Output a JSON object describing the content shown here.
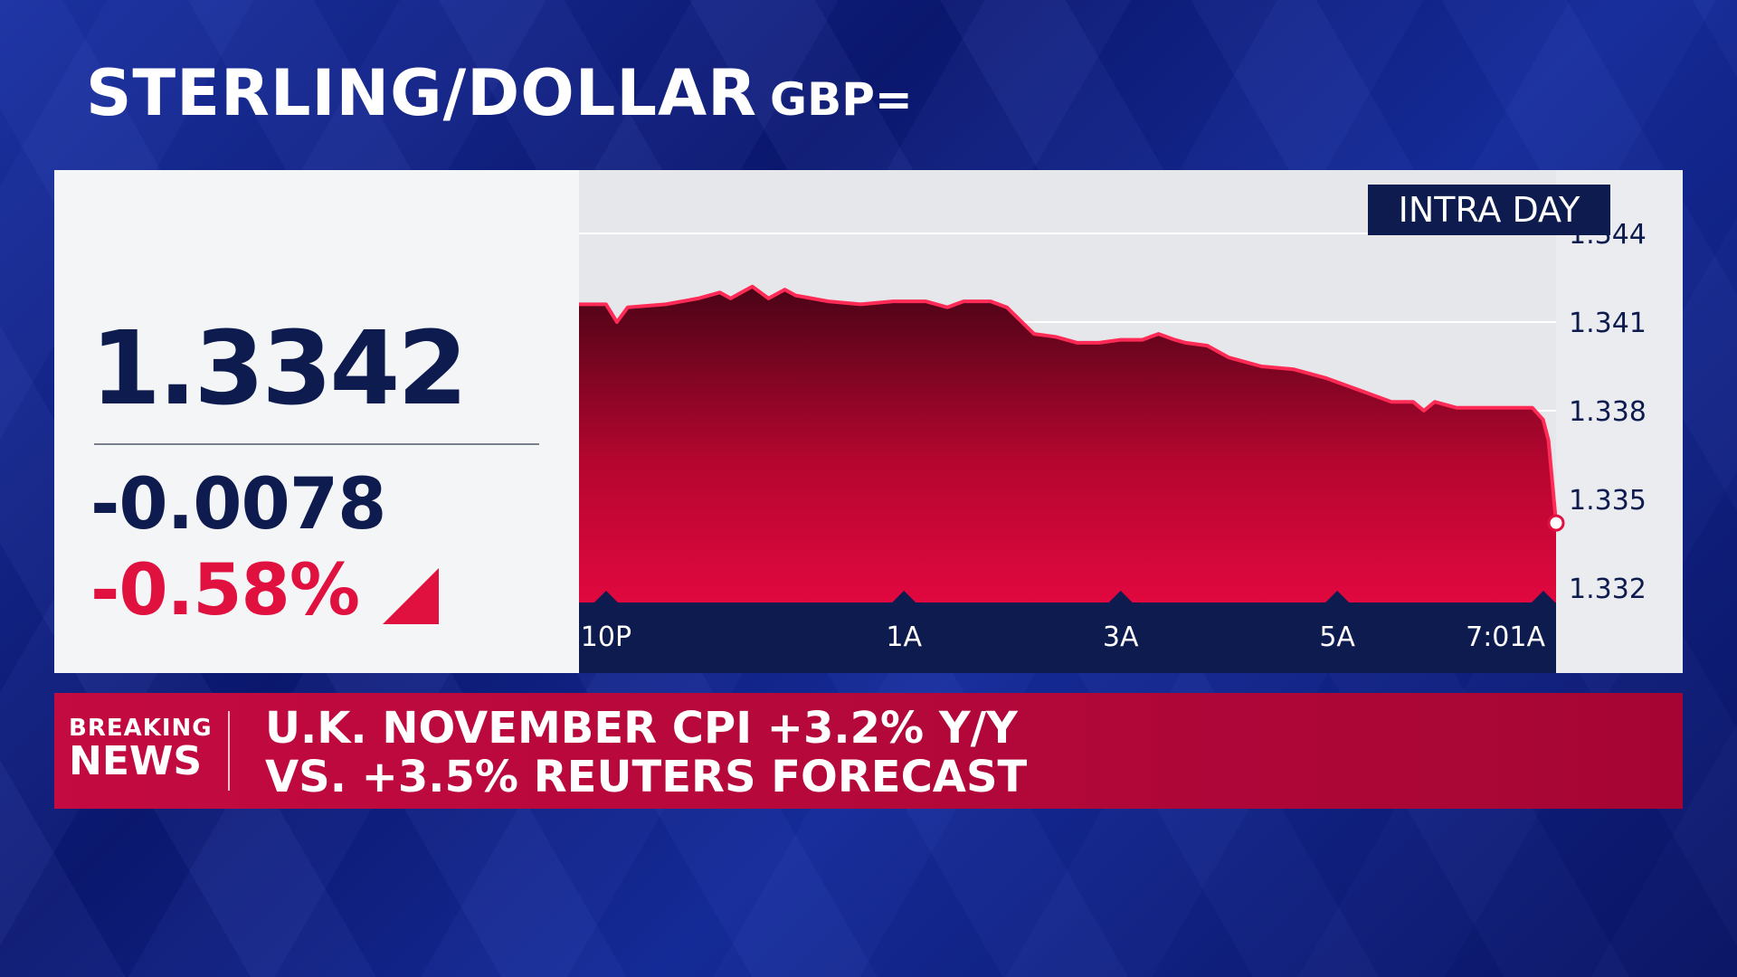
{
  "title": {
    "main": "STERLING/DOLLAR",
    "symbol": "GBP="
  },
  "quote": {
    "price": "1.3342",
    "change": "-0.0078",
    "change_pct": "-0.58%"
  },
  "badge": "INTRA DAY",
  "colors": {
    "navy": "#0d1b4f",
    "accent_red": "#e0103f",
    "news_bar": "#b0083a"
  },
  "chart_data": {
    "type": "area",
    "title": "",
    "xlabel": "",
    "ylabel": "",
    "ylim": [
      1.331,
      1.345
    ],
    "y_ticks": [
      "1.344",
      "1.341",
      "1.338",
      "1.335",
      "1.332"
    ],
    "y_tick_values": [
      1.344,
      1.341,
      1.338,
      1.335,
      1.332
    ],
    "x_ticks": [
      "10P",
      "1A",
      "3A",
      "5A",
      "7:01A"
    ],
    "x_tick_values": [
      0.25,
      3,
      5,
      7,
      9.02
    ],
    "x_range": [
      0,
      9.02
    ],
    "grid": "horizontal",
    "series": [
      {
        "points": [
          [
            0.0,
            1.3416
          ],
          [
            0.25,
            1.3416
          ],
          [
            0.35,
            1.341
          ],
          [
            0.45,
            1.3415
          ],
          [
            0.8,
            1.3416
          ],
          [
            1.1,
            1.3418
          ],
          [
            1.3,
            1.342
          ],
          [
            1.4,
            1.3418
          ],
          [
            1.5,
            1.342
          ],
          [
            1.6,
            1.3422
          ],
          [
            1.75,
            1.3418
          ],
          [
            1.9,
            1.3421
          ],
          [
            2.0,
            1.3419
          ],
          [
            2.3,
            1.3417
          ],
          [
            2.6,
            1.3416
          ],
          [
            2.9,
            1.3417
          ],
          [
            3.0,
            1.3417
          ],
          [
            3.2,
            1.3417
          ],
          [
            3.4,
            1.3415
          ],
          [
            3.55,
            1.3417
          ],
          [
            3.8,
            1.3417
          ],
          [
            3.95,
            1.3415
          ],
          [
            4.2,
            1.3406
          ],
          [
            4.4,
            1.3405
          ],
          [
            4.6,
            1.3403
          ],
          [
            4.8,
            1.3403
          ],
          [
            5.0,
            1.3404
          ],
          [
            5.2,
            1.3404
          ],
          [
            5.35,
            1.3406
          ],
          [
            5.5,
            1.3404
          ],
          [
            5.6,
            1.3403
          ],
          [
            5.8,
            1.3402
          ],
          [
            6.0,
            1.3398
          ],
          [
            6.3,
            1.3395
          ],
          [
            6.6,
            1.3394
          ],
          [
            6.9,
            1.3391
          ],
          [
            7.2,
            1.3387
          ],
          [
            7.5,
            1.3383
          ],
          [
            7.7,
            1.3383
          ],
          [
            7.8,
            1.338
          ],
          [
            7.9,
            1.3383
          ],
          [
            8.1,
            1.3381
          ],
          [
            8.5,
            1.3381
          ],
          [
            8.8,
            1.3381
          ],
          [
            8.9,
            1.3377
          ],
          [
            8.95,
            1.337
          ],
          [
            9.02,
            1.3342
          ]
        ]
      }
    ]
  },
  "breaking": {
    "label_line1": "BREAKING",
    "label_line2": "NEWS",
    "headline_line1": "U.K. NOVEMBER CPI +3.2% Y/Y",
    "headline_line2": "VS. +3.5% REUTERS FORECAST"
  }
}
